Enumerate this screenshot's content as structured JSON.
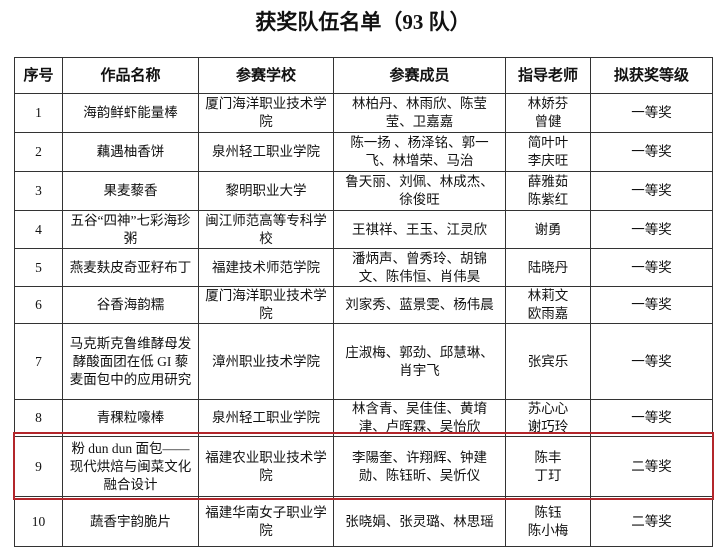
{
  "title": "获奖队伍名单（93 队）",
  "table": {
    "headers": [
      "序号",
      "作品名称",
      "参赛学校",
      "参赛成员",
      "指导老师",
      "拟获奖等级"
    ],
    "rows": [
      [
        "1",
        "海韵鲜虾能量棒",
        "厦门海洋职业技术学院",
        "林柏丹、林雨欣、陈莹莹、卫嘉嘉",
        [
          "林娇芬",
          "曾健"
        ],
        "一等奖"
      ],
      [
        "2",
        "藕遇柚香饼",
        "泉州轻工职业学院",
        "陈一扬 、杨泽铭、郭一飞、林增荣、马治",
        [
          "简叶叶",
          "李庆旺"
        ],
        "一等奖"
      ],
      [
        "3",
        "果麦藜香",
        "黎明职业大学",
        "鲁天丽、刘佩、林成杰、徐俊旺",
        [
          "薛雅茹",
          "陈紫红"
        ],
        "一等奖"
      ],
      [
        "4",
        "五谷“四神”七彩海珍粥",
        "闽江师范高等专科学校",
        "王祺祥、王玉、江灵欣",
        [
          "谢勇"
        ],
        "一等奖"
      ],
      [
        "5",
        "燕麦麸皮奇亚籽布丁",
        "福建技术师范学院",
        "潘炳声、曾秀玲、胡锦文、陈伟恒、肖伟昊",
        [
          "陆晓丹"
        ],
        "一等奖"
      ],
      [
        "6",
        "谷香海韵糯",
        "厦门海洋职业技术学院",
        "刘家秀、蓝景雯、杨伟晨",
        [
          "林莉文",
          "欧雨嘉"
        ],
        "一等奖"
      ],
      [
        "7",
        "马克斯克鲁维酵母发酵酸面团在低 GI 藜麦面包中的应用研究",
        "漳州职业技术学院",
        "庄淑梅、郭劲、邱慧琳、肖宇飞",
        [
          "张宾乐"
        ],
        "一等奖"
      ],
      [
        "8",
        "青稞粒嚎棒",
        "泉州轻工职业学院",
        "林含青、吴佳佳、黄堉津、卢晖霖、吴怡欣",
        [
          "苏心心",
          "谢巧玲"
        ],
        "一等奖"
      ],
      [
        "9",
        "粉 dun dun 面包——现代烘焙与闽菜文化融合设计",
        "福建农业职业技术学院",
        "李陽奎、许翔辉、钟建勋、陈钰昕、吴忻仪",
        [
          "陈丰",
          "丁玎"
        ],
        "二等奖"
      ],
      [
        "10",
        "蔬香宇韵脆片",
        "福建华南女子职业学院",
        "张晓娟、张灵璐、林思瑶",
        [
          "陈钰",
          "陈小梅"
        ],
        "二等奖"
      ]
    ]
  }
}
